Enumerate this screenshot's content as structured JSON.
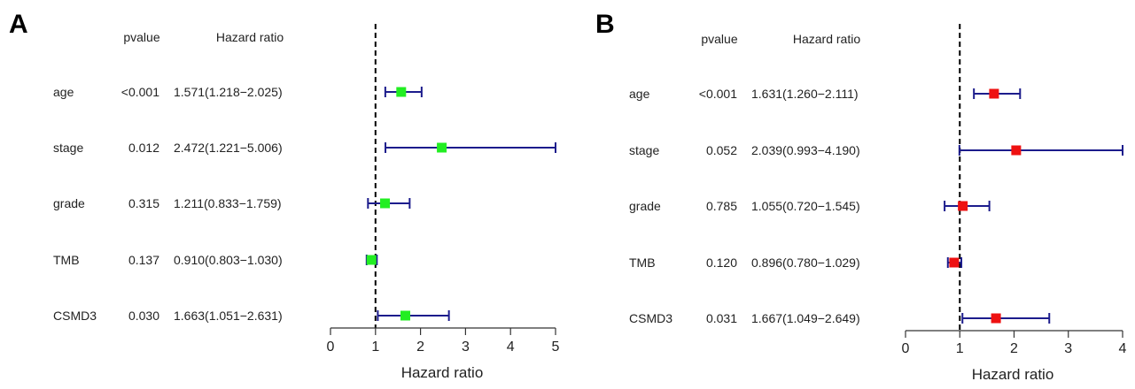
{
  "colors": {
    "line": "#1c1c8c",
    "axis": "#333333",
    "text": "#222222"
  },
  "chart_data": [
    {
      "type": "forest",
      "panel_label": "A",
      "col_headers": {
        "pvalue": "pvalue",
        "hr": "Hazard ratio"
      },
      "xlabel": "Hazard ratio",
      "xlim": [
        0,
        5
      ],
      "xticks": [
        "0",
        "1",
        "2",
        "3",
        "4",
        "5"
      ],
      "reference_line": 1,
      "marker_color": "#22ee22",
      "rows": [
        {
          "label": "age",
          "pvalue": "<0.001",
          "hr_text": "1.571(1.218−2.025)",
          "hr": 1.571,
          "lower": 1.218,
          "upper": 2.025
        },
        {
          "label": "stage",
          "pvalue": "0.012",
          "hr_text": "2.472(1.221−5.006)",
          "hr": 2.472,
          "lower": 1.221,
          "upper": 5.006
        },
        {
          "label": "grade",
          "pvalue": "0.315",
          "hr_text": "1.211(0.833−1.759)",
          "hr": 1.211,
          "lower": 0.833,
          "upper": 1.759
        },
        {
          "label": "TMB",
          "pvalue": "0.137",
          "hr_text": "0.910(0.803−1.030)",
          "hr": 0.91,
          "lower": 0.803,
          "upper": 1.03
        },
        {
          "label": "CSMD3",
          "pvalue": "0.030",
          "hr_text": "1.663(1.051−2.631)",
          "hr": 1.663,
          "lower": 1.051,
          "upper": 2.631
        }
      ]
    },
    {
      "type": "forest",
      "panel_label": "B",
      "col_headers": {
        "pvalue": "pvalue",
        "hr": "Hazard ratio"
      },
      "xlabel": "Hazard ratio",
      "xlim": [
        0,
        4
      ],
      "xticks": [
        "0",
        "1",
        "2",
        "3",
        "4"
      ],
      "reference_line": 1,
      "marker_color": "#ee1111",
      "rows": [
        {
          "label": "age",
          "pvalue": "<0.001",
          "hr_text": "1.631(1.260−2.111)",
          "hr": 1.631,
          "lower": 1.26,
          "upper": 2.111
        },
        {
          "label": "stage",
          "pvalue": "0.052",
          "hr_text": "2.039(0.993−4.190)",
          "hr": 2.039,
          "lower": 0.993,
          "upper": 4.19
        },
        {
          "label": "grade",
          "pvalue": "0.785",
          "hr_text": "1.055(0.720−1.545)",
          "hr": 1.055,
          "lower": 0.72,
          "upper": 1.545
        },
        {
          "label": "TMB",
          "pvalue": "0.120",
          "hr_text": "0.896(0.780−1.029)",
          "hr": 0.896,
          "lower": 0.78,
          "upper": 1.029
        },
        {
          "label": "CSMD3",
          "pvalue": "0.031",
          "hr_text": "1.667(1.049−2.649)",
          "hr": 1.667,
          "lower": 1.049,
          "upper": 2.649
        }
      ]
    }
  ]
}
